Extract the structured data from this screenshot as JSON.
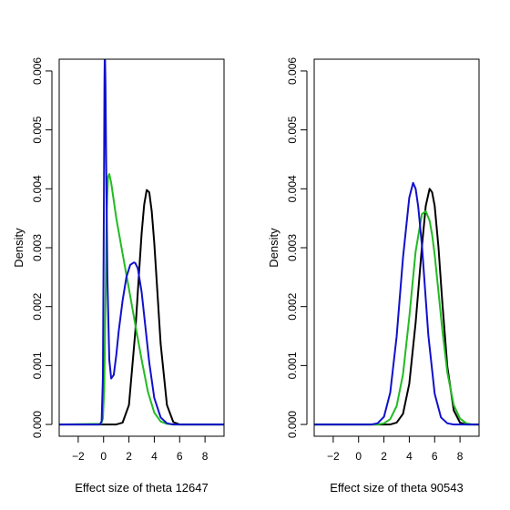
{
  "figure": {
    "background": "#ffffff",
    "series_colors": {
      "black": "#000000",
      "green": "#22bb22",
      "blue": "#1010cc"
    }
  },
  "chart_data": [
    {
      "type": "line",
      "title": "",
      "xlabel": "Effect size of theta 12647",
      "ylabel": "Density",
      "xlim": [
        -3.5,
        9.5
      ],
      "ylim": [
        -0.0002,
        0.0062
      ],
      "xticks": [
        -2,
        0,
        2,
        4,
        6,
        8
      ],
      "xtick_labels": [
        "−2",
        "0",
        "2",
        "4",
        "6",
        "8"
      ],
      "yticks": [
        0.0,
        0.001,
        0.002,
        0.003,
        0.004,
        0.005,
        0.006
      ],
      "ytick_labels": [
        "0.000",
        "0.001",
        "0.002",
        "0.003",
        "0.004",
        "0.005",
        "0.006"
      ],
      "grid": false,
      "series": [
        {
          "color": "#000000",
          "x": [
            -3.5,
            1.0,
            1.5,
            2.0,
            2.5,
            2.8,
            3.0,
            3.2,
            3.4,
            3.6,
            3.8,
            4.0,
            4.2,
            4.5,
            5.0,
            5.5,
            6.0,
            9.5
          ],
          "y": [
            0.0,
            0.0,
            3e-05,
            0.00033,
            0.00156,
            0.00258,
            0.00324,
            0.00373,
            0.00398,
            0.00394,
            0.00362,
            0.00308,
            0.0024,
            0.00137,
            0.00033,
            4e-05,
            0.0,
            0.0
          ]
        },
        {
          "color": "#22bb22",
          "x": [
            -3.5,
            -0.2,
            -0.05,
            0.05,
            0.15,
            0.25,
            0.35,
            0.45,
            0.6,
            0.8,
            1.0,
            1.5,
            2.0,
            2.5,
            3.0,
            3.5,
            4.0,
            4.5,
            5.0,
            5.5,
            9.5
          ],
          "y": [
            0.0,
            1e-05,
            0.0001,
            0.0006,
            0.002,
            0.0036,
            0.0042,
            0.00425,
            0.0041,
            0.0038,
            0.0035,
            0.0029,
            0.0023,
            0.0017,
            0.0011,
            0.00055,
            0.0002,
            5e-05,
            1e-05,
            0.0,
            0.0
          ]
        },
        {
          "color": "#1010cc",
          "x": [
            -3.5,
            -0.3,
            -0.15,
            -0.05,
            0.02,
            0.07,
            0.1,
            0.15,
            0.2,
            0.3,
            0.45,
            0.6,
            0.8,
            1.0,
            1.2,
            1.5,
            1.8,
            2.1,
            2.4,
            2.5,
            2.7,
            3.0,
            3.3,
            3.6,
            4.0,
            4.5,
            5.0,
            5.5,
            9.5
          ],
          "y": [
            0.0,
            0.0,
            5e-05,
            0.0008,
            0.0035,
            0.0058,
            0.0064,
            0.0058,
            0.0046,
            0.0025,
            0.0011,
            0.00078,
            0.00084,
            0.00118,
            0.00159,
            0.0021,
            0.0025,
            0.00271,
            0.00275,
            0.00274,
            0.00265,
            0.00225,
            0.00165,
            0.00105,
            0.00045,
            0.00012,
            2e-05,
            0.0,
            0.0
          ]
        }
      ]
    },
    {
      "type": "line",
      "title": "",
      "xlabel": "Effect size of theta 90543",
      "ylabel": "Density",
      "xlim": [
        -3.5,
        9.5
      ],
      "ylim": [
        -0.0002,
        0.0062
      ],
      "xticks": [
        -2,
        0,
        2,
        4,
        6,
        8
      ],
      "xtick_labels": [
        "−2",
        "0",
        "2",
        "4",
        "6",
        "8"
      ],
      "yticks": [
        0.0,
        0.001,
        0.002,
        0.003,
        0.004,
        0.005,
        0.006
      ],
      "ytick_labels": [
        "0.000",
        "0.001",
        "0.002",
        "0.003",
        "0.004",
        "0.005",
        "0.006"
      ],
      "grid": false,
      "series": [
        {
          "color": "#000000",
          "x": [
            -3.5,
            2.5,
            3.0,
            3.5,
            4.0,
            4.5,
            5.0,
            5.3,
            5.6,
            5.8,
            6.0,
            6.3,
            6.6,
            7.0,
            7.5,
            8.0,
            8.5,
            9.5
          ],
          "y": [
            0.0,
            0.0,
            3e-05,
            0.00018,
            0.00069,
            0.00173,
            0.00302,
            0.00371,
            0.004,
            0.00394,
            0.00371,
            0.00302,
            0.00209,
            0.00098,
            0.00024,
            3e-05,
            0.0,
            0.0
          ]
        },
        {
          "color": "#22bb22",
          "x": [
            -3.5,
            1.5,
            2.0,
            2.5,
            3.0,
            3.5,
            4.0,
            4.5,
            5.0,
            5.3,
            5.6,
            5.8,
            6.0,
            6.3,
            6.6,
            7.0,
            7.5,
            8.0,
            8.5,
            9.0,
            9.5
          ],
          "y": [
            0.0,
            0.0,
            2e-05,
            9e-05,
            0.00031,
            0.00085,
            0.00182,
            0.00294,
            0.00357,
            0.00362,
            0.00346,
            0.00322,
            0.00288,
            0.00226,
            0.00162,
            0.00088,
            0.00033,
            0.0001,
            2e-05,
            0.0,
            0.0
          ]
        },
        {
          "color": "#1010cc",
          "x": [
            -3.5,
            1.0,
            1.5,
            2.0,
            2.5,
            3.0,
            3.5,
            4.0,
            4.3,
            4.5,
            4.7,
            5.0,
            5.5,
            6.0,
            6.5,
            7.0,
            7.5,
            9.5
          ],
          "y": [
            0.0,
            0.0,
            2e-05,
            0.00013,
            0.00054,
            0.00149,
            0.00283,
            0.00385,
            0.0041,
            0.004,
            0.0037,
            0.00304,
            0.00152,
            0.00052,
            0.00012,
            2e-05,
            0.0,
            0.0
          ]
        }
      ]
    }
  ]
}
